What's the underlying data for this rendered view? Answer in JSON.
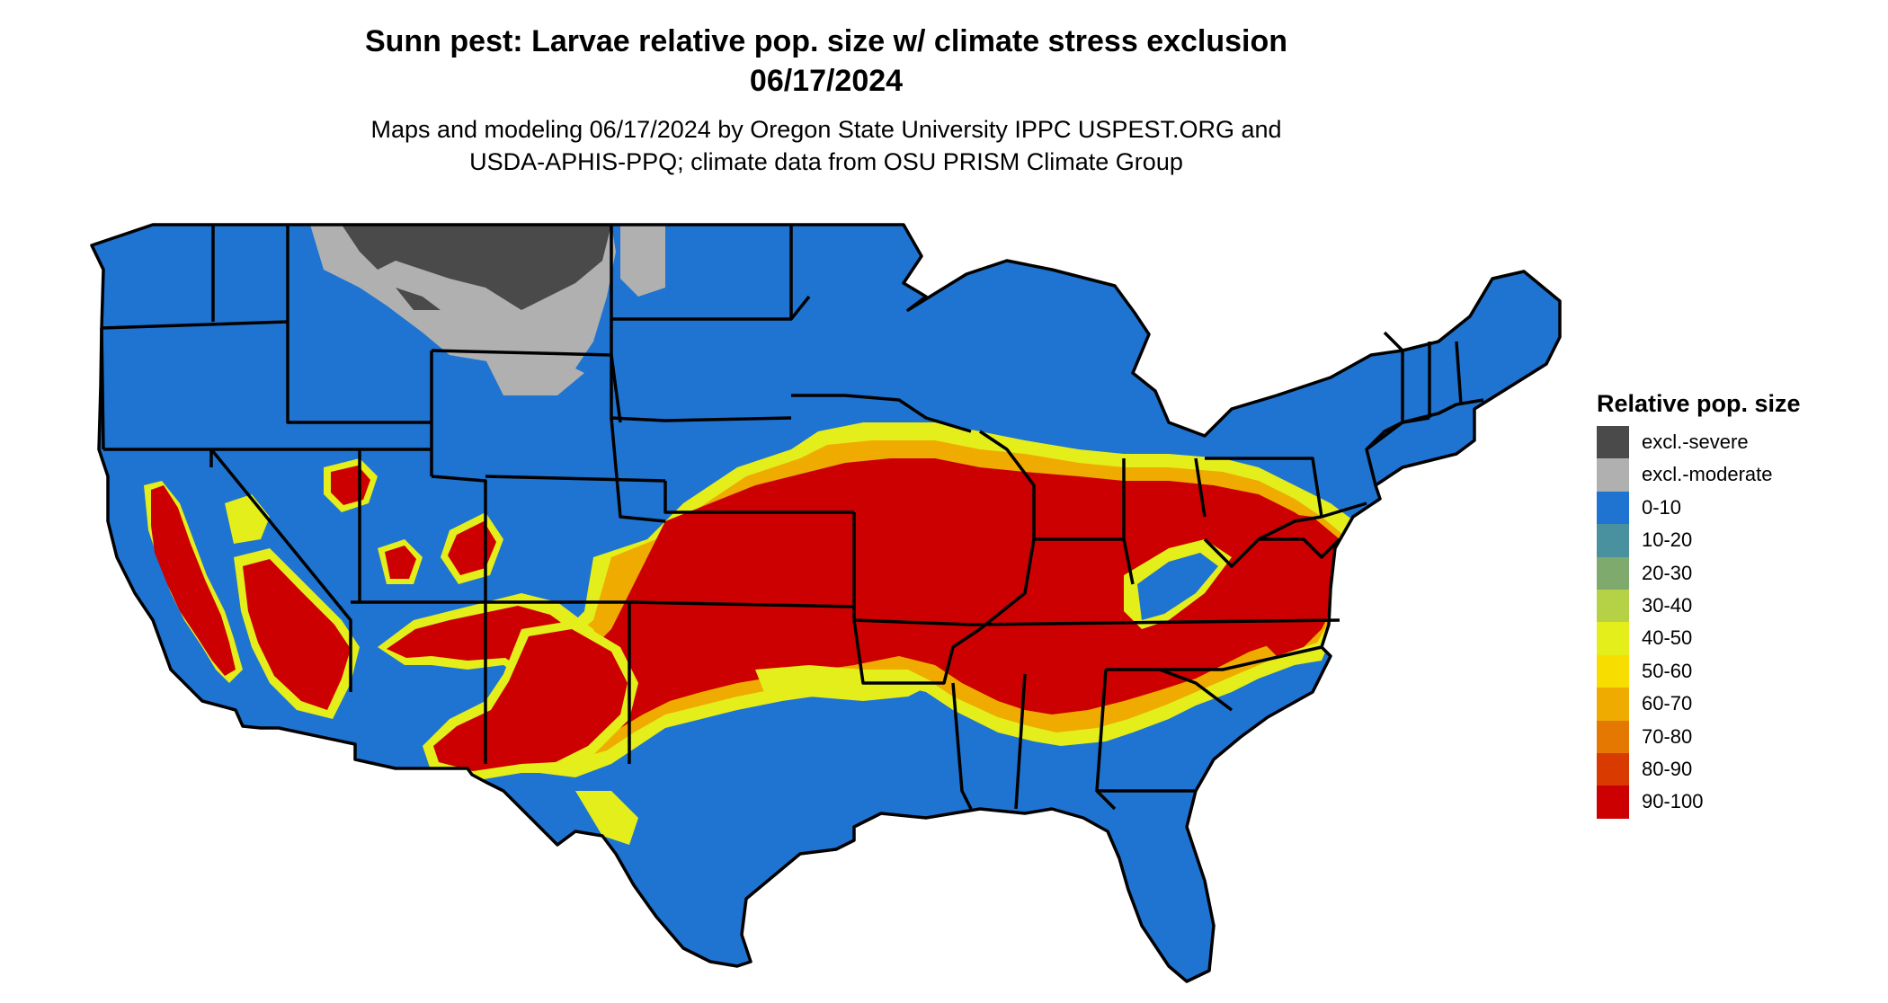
{
  "title": {
    "line1": "Sunn pest: Larvae relative pop. size w/ climate stress exclusion",
    "line2": "06/17/2024"
  },
  "subtitle": {
    "line1": "Maps and modeling 06/17/2024 by Oregon State University IPPC USPEST.ORG and",
    "line2": "USDA-APHIS-PPQ; climate data from OSU PRISM Climate Group"
  },
  "legend": {
    "title": "Relative pop. size",
    "items": [
      {
        "label": "excl.-severe",
        "color": "#4a4a4a"
      },
      {
        "label": "excl.-moderate",
        "color": "#b0b0b0"
      },
      {
        "label": "0-10",
        "color": "#1f74d1"
      },
      {
        "label": "10-20",
        "color": "#4a91a0"
      },
      {
        "label": "20-30",
        "color": "#7faa6e"
      },
      {
        "label": "30-40",
        "color": "#b5d146"
      },
      {
        "label": "40-50",
        "color": "#e4ee1a"
      },
      {
        "label": "50-60",
        "color": "#f7dd00"
      },
      {
        "label": "60-70",
        "color": "#efab00"
      },
      {
        "label": "70-80",
        "color": "#e57800"
      },
      {
        "label": "80-90",
        "color": "#d93a00"
      },
      {
        "label": "90-100",
        "color": "#cc0000"
      }
    ]
  }
}
